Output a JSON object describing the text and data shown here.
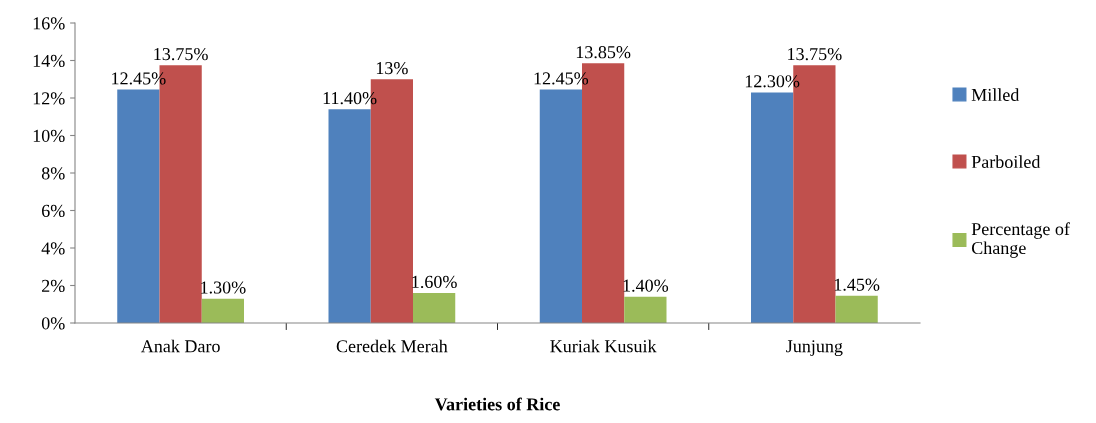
{
  "chart_data": {
    "type": "bar",
    "xlabel": "Varieties of Rice",
    "categories": [
      "Anak Daro",
      "Ceredek Merah",
      "Kuriak Kusuik",
      "Junjung"
    ],
    "series": [
      {
        "name": "Milled",
        "color": "#4f81bd",
        "values": [
          12.45,
          11.4,
          12.45,
          12.3
        ],
        "value_labels": [
          "12.45%",
          "11.40%",
          "12.45%",
          "12.30%"
        ]
      },
      {
        "name": "Parboiled",
        "color": "#c0504d",
        "values": [
          13.75,
          13,
          13.85,
          13.75
        ],
        "value_labels": [
          "13.75%",
          "13%",
          "13.85%",
          "13.75%"
        ]
      },
      {
        "name": "Percentage of\nChange",
        "color": "#9bbb59",
        "values": [
          1.3,
          1.6,
          1.4,
          1.45
        ],
        "value_labels": [
          "1.30%",
          "1.60%",
          "1.40%",
          "1.45%"
        ]
      }
    ],
    "ylim": [
      0,
      16
    ],
    "yticks": [
      {
        "value": 0,
        "label": "0%"
      },
      {
        "value": 2,
        "label": "2%"
      },
      {
        "value": 4,
        "label": "4%"
      },
      {
        "value": 6,
        "label": "6%"
      },
      {
        "value": 8,
        "label": "8%"
      },
      {
        "value": 10,
        "label": "10%"
      },
      {
        "value": 12,
        "label": "12%"
      },
      {
        "value": 14,
        "label": "14%"
      },
      {
        "value": 16,
        "label": "16%"
      }
    ],
    "legend": "right",
    "grid": false
  }
}
